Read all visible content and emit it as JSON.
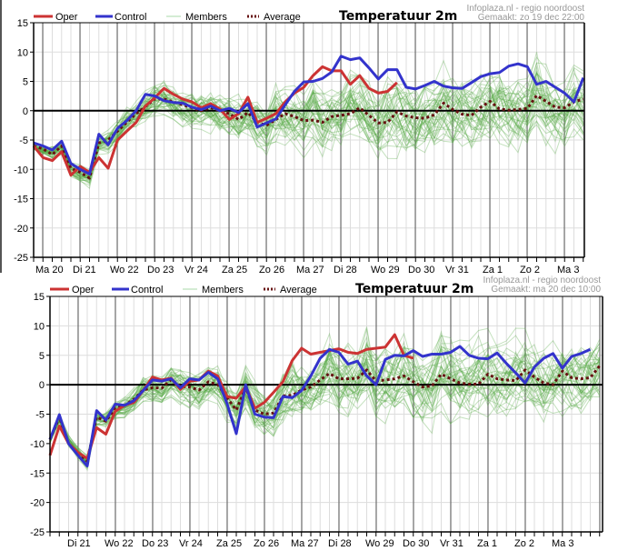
{
  "chart_data": [
    {
      "type": "line",
      "title": "Temperatuur 2m",
      "source": "Infoplaza.nl - regio noordoost",
      "created": "Gemaakt: zo 19 dec 22:00",
      "xlabel": "",
      "ylabel": "",
      "ylim": [
        -25,
        15
      ],
      "yticks": [
        15,
        10,
        5,
        0,
        -5,
        -10,
        -15,
        -20,
        -25
      ],
      "grid": true,
      "legend_position": "top-left",
      "legend": [
        {
          "name": "Oper",
          "color": "#cc3333",
          "style": "solid"
        },
        {
          "name": "Control",
          "color": "#3333cc",
          "style": "solid"
        },
        {
          "name": "Members",
          "color": "#99cc99",
          "style": "thin"
        },
        {
          "name": "Average",
          "color": "#661111",
          "style": "dotted"
        }
      ],
      "day_labels": [
        "Ma 20",
        "Di 21",
        "Wo 22",
        "Do 23",
        "Vr 24",
        "Za 25",
        "Zo 26",
        "Ma 27",
        "Di 28",
        "Wo 29",
        "Do 30",
        "Vr 31",
        "Za 1",
        "Zo 2",
        "Ma 3"
      ],
      "x_step_hours": 6,
      "series": [
        {
          "name": "Oper",
          "values": [
            -6,
            -8,
            -8.5,
            -7,
            -11,
            -9.5,
            -10.5,
            -8,
            -9.8,
            -5,
            -3.5,
            -2,
            0.8,
            2.2,
            3.8,
            2.8,
            2,
            1.5,
            0.5,
            1.2,
            0.3,
            -1.5,
            -0.5,
            2.3,
            -2,
            -1.3,
            -0.5,
            1.5,
            3,
            4,
            6,
            7.5,
            6.8,
            6.8,
            4.5,
            6,
            3.8,
            3,
            3.3,
            4.8
          ]
        },
        {
          "name": "Control",
          "values": [
            -5.5,
            -6,
            -6.7,
            -5.2,
            -9,
            -10,
            -10.8,
            -4,
            -5.8,
            -3,
            -1.7,
            0,
            2.8,
            2.5,
            1.7,
            1.4,
            1.3,
            0.6,
            0.2,
            0.8,
            0,
            0.4,
            -0.3,
            1.2,
            -2.8,
            -2.1,
            -1.4,
            1,
            3.3,
            4.9,
            5,
            5.5,
            6.6,
            9.3,
            8.7,
            9,
            7.3,
            5.4,
            7,
            7,
            4,
            3.7,
            4.3,
            5,
            4.2,
            3.9,
            3.8,
            4.8,
            5.8,
            6.3,
            6.5,
            7.6,
            8,
            7.5,
            4.5,
            5,
            4,
            3,
            1.5,
            5.6
          ]
        },
        {
          "name": "Average",
          "values": [
            -6,
            -6.5,
            -7.5,
            -6,
            -9.8,
            -10.5,
            -11.5,
            -5.5,
            -5,
            -3.5,
            -2,
            -0.5,
            0.7,
            2,
            2,
            1.5,
            1,
            0.5,
            0,
            0.5,
            0,
            -0.5,
            -1.5,
            -0.3,
            -2,
            -2.5,
            -1.5,
            -0.5,
            -1,
            -1.7,
            -1.6,
            -2,
            -1,
            -0.8,
            -0.5,
            0.5,
            -0.8,
            -2.1,
            -2,
            -0.2,
            -0.9,
            -1.2,
            -1.3,
            -0.7,
            1.3,
            0.2,
            -0.6,
            -0.8,
            0.6,
            1.6,
            0.3,
            0.1,
            0.2,
            0.4,
            2.6,
            1.6,
            0.6,
            0.5,
            1.5,
            2,
            0.9,
            0.7,
            1,
            1.5,
            2.6
          ]
        }
      ]
    },
    {
      "type": "line",
      "title": "Temperatuur 2m",
      "source": "Infoplaza.nl - regio noordoost",
      "created": "Gemaakt: ma 20 dec 10:00",
      "xlabel": "",
      "ylabel": "",
      "ylim": [
        -25,
        15
      ],
      "yticks": [
        15,
        10,
        5,
        0,
        -5,
        -10,
        -15,
        -20,
        -25
      ],
      "grid": true,
      "legend_position": "top-left",
      "legend": [
        {
          "name": "Oper",
          "color": "#cc3333",
          "style": "solid"
        },
        {
          "name": "Control",
          "color": "#3333cc",
          "style": "solid"
        },
        {
          "name": "Members",
          "color": "#99cc99",
          "style": "thin"
        },
        {
          "name": "Average",
          "color": "#661111",
          "style": "dotted"
        }
      ],
      "day_labels": [
        "Di 21",
        "Wo 22",
        "Do 23",
        "Vr 24",
        "Za 25",
        "Zo 26",
        "Ma 27",
        "Di 28",
        "Wo 29",
        "Do 30",
        "Vr 31",
        "Za 1",
        "Zo 2",
        "Ma 3"
      ],
      "x_step_hours": 6,
      "series": [
        {
          "name": "Oper",
          "values": [
            -12,
            -7,
            -10,
            -11.5,
            -12.5,
            -7.3,
            -8.4,
            -4.5,
            -3.5,
            -3,
            -1,
            1.3,
            0.8,
            1.1,
            -0.8,
            0.6,
            0.8,
            2.3,
            1.5,
            -2,
            -2.3,
            -0.3,
            -4,
            -3,
            -1.3,
            0.5,
            4.1,
            6.2,
            5.2,
            5.5,
            5.8,
            6.1,
            5.5,
            5.3,
            6,
            6.2,
            6.4,
            8.5,
            5,
            4.5
          ]
        },
        {
          "name": "Control",
          "values": [
            -9.3,
            -5.1,
            -10,
            -12,
            -13.8,
            -4.4,
            -6,
            -3.3,
            -3.5,
            -2.7,
            -1,
            0.8,
            0.6,
            1,
            -0.5,
            1,
            0.8,
            2.1,
            1,
            -3.2,
            -8.3,
            0,
            -5,
            -5.5,
            -5.6,
            -2,
            -2.2,
            -1,
            1.5,
            4.5,
            6,
            5.5,
            3.5,
            4,
            1.5,
            0,
            4.3,
            5,
            4.9,
            5.8,
            4.8,
            5.2,
            5.2,
            5.5,
            6.5,
            5,
            4.5,
            4.4,
            5.4,
            3.6,
            2,
            0.3,
            3,
            4.5,
            5.3,
            2.8,
            4.8,
            5.3,
            6
          ]
        },
        {
          "name": "Average",
          "values": [
            -9.3,
            -5.5,
            -10,
            -11.5,
            -13,
            -5.5,
            -6.2,
            -4,
            -3.5,
            -2.5,
            -0.9,
            -0.5,
            -0.6,
            0.9,
            -0.3,
            -0.4,
            -0.9,
            0.5,
            0,
            -2.2,
            -4.3,
            -0.5,
            -4.3,
            -5,
            -4.8,
            -1.9,
            -1.8,
            -0.9,
            -0.4,
            0.8,
            1.9,
            1,
            1,
            1.1,
            2.5,
            0.6,
            0.8,
            1,
            1.5,
            0.5,
            -0.4,
            -0.2,
            1.8,
            1,
            0.3,
            0.1,
            0.1,
            1.8,
            1,
            0.8,
            0.7,
            2.5,
            1.3,
            0.3,
            0,
            2.3,
            1.2,
            1,
            1.2,
            3.2,
            1.7
          ]
        }
      ]
    }
  ]
}
